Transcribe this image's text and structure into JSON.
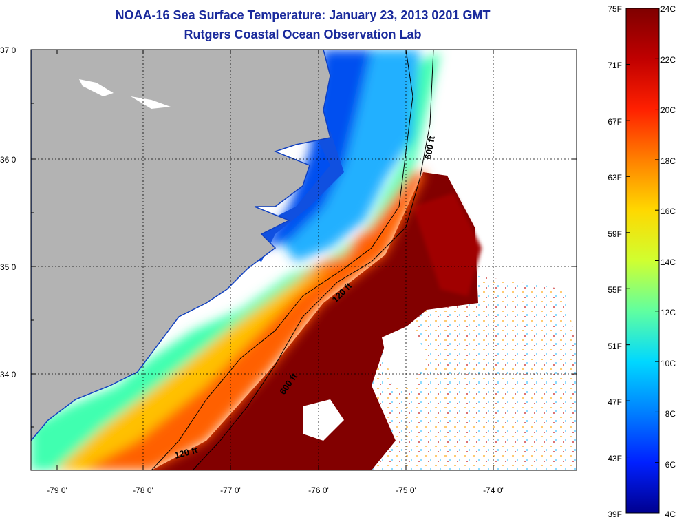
{
  "title": "NOAA-16 Sea Surface Temperature:  January 23, 2013 0201 GMT",
  "subtitle": "Rutgers Coastal Ocean Observation Lab",
  "map": {
    "lat_labels": [
      "37 0'",
      "36 0'",
      "35 0'",
      "34 0'"
    ],
    "lon_labels": [
      "-79 0'",
      "-78 0'",
      "-77 0'",
      "-76 0'",
      "-75 0'",
      "-74 0'"
    ],
    "contour_labels": [
      "600 ft",
      "120 ft",
      "600 ft",
      "120 ft"
    ],
    "land_color": "#b3b3b3",
    "missing_color": "#ffffff"
  },
  "colorbar": {
    "fahrenheit_labels": [
      "75F",
      "71F",
      "67F",
      "63F",
      "59F",
      "55F",
      "51F",
      "47F",
      "43F",
      "39F"
    ],
    "celsius_labels": [
      "24C",
      "22C",
      "20C",
      "18C",
      "16C",
      "14C",
      "12C",
      "10C",
      "8C",
      "6C",
      "4C"
    ],
    "colors": [
      "#7f0000",
      "#c00000",
      "#ff2000",
      "#ff8000",
      "#ffd800",
      "#d0ff30",
      "#60ffa0",
      "#00d8ff",
      "#0080ff",
      "#0020ff",
      "#00008f"
    ]
  }
}
